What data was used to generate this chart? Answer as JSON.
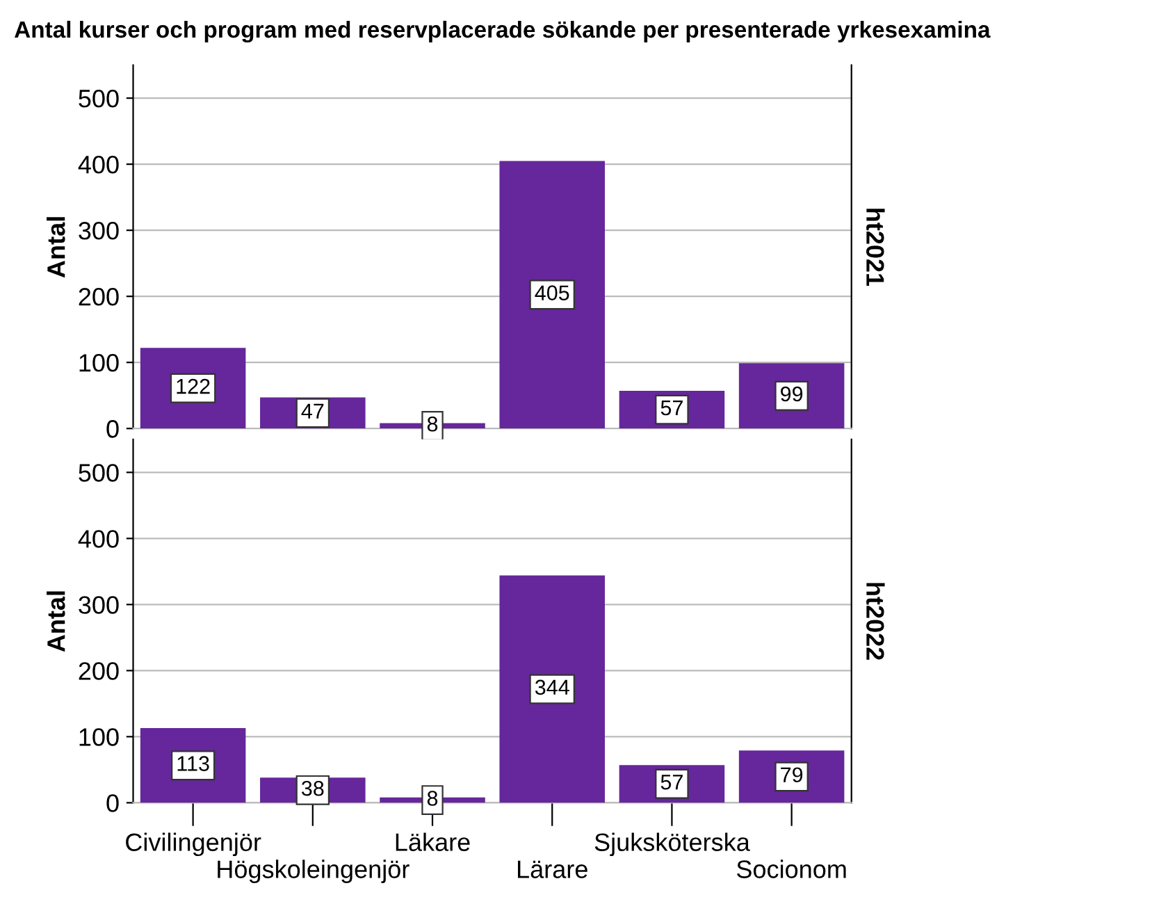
{
  "chart_data": [
    {
      "type": "bar",
      "title": "Antal kurser och program med reservplacerade sökande per presenterade yrkesexamina",
      "ylabel": "Antal",
      "y2label": "ht2021",
      "categories": [
        null,
        null,
        null,
        null,
        null,
        null
      ],
      "values": [
        122,
        47,
        8,
        405,
        57,
        99
      ],
      "color": "#65279b",
      "ylim": [
        0,
        550
      ],
      "yticks": [
        0,
        100,
        200,
        300,
        400,
        500
      ],
      "grid": "y",
      "data_labels": true,
      "tick_labels": "y"
    },
    {
      "type": "bar",
      "ylabel": "Antal",
      "y2label": "ht2022",
      "categories": [
        "Civilingenjör",
        "Högskoleingenjör",
        "Läkare",
        "Lärare",
        "Sjuksköterska",
        "Socionom"
      ],
      "values": [
        113,
        38,
        8,
        344,
        57,
        79
      ],
      "color": "#65279b",
      "ylim": [
        0,
        550
      ],
      "yticks": [
        0,
        100,
        200,
        300,
        400,
        500
      ],
      "grid": "y",
      "data_labels": true
    }
  ]
}
